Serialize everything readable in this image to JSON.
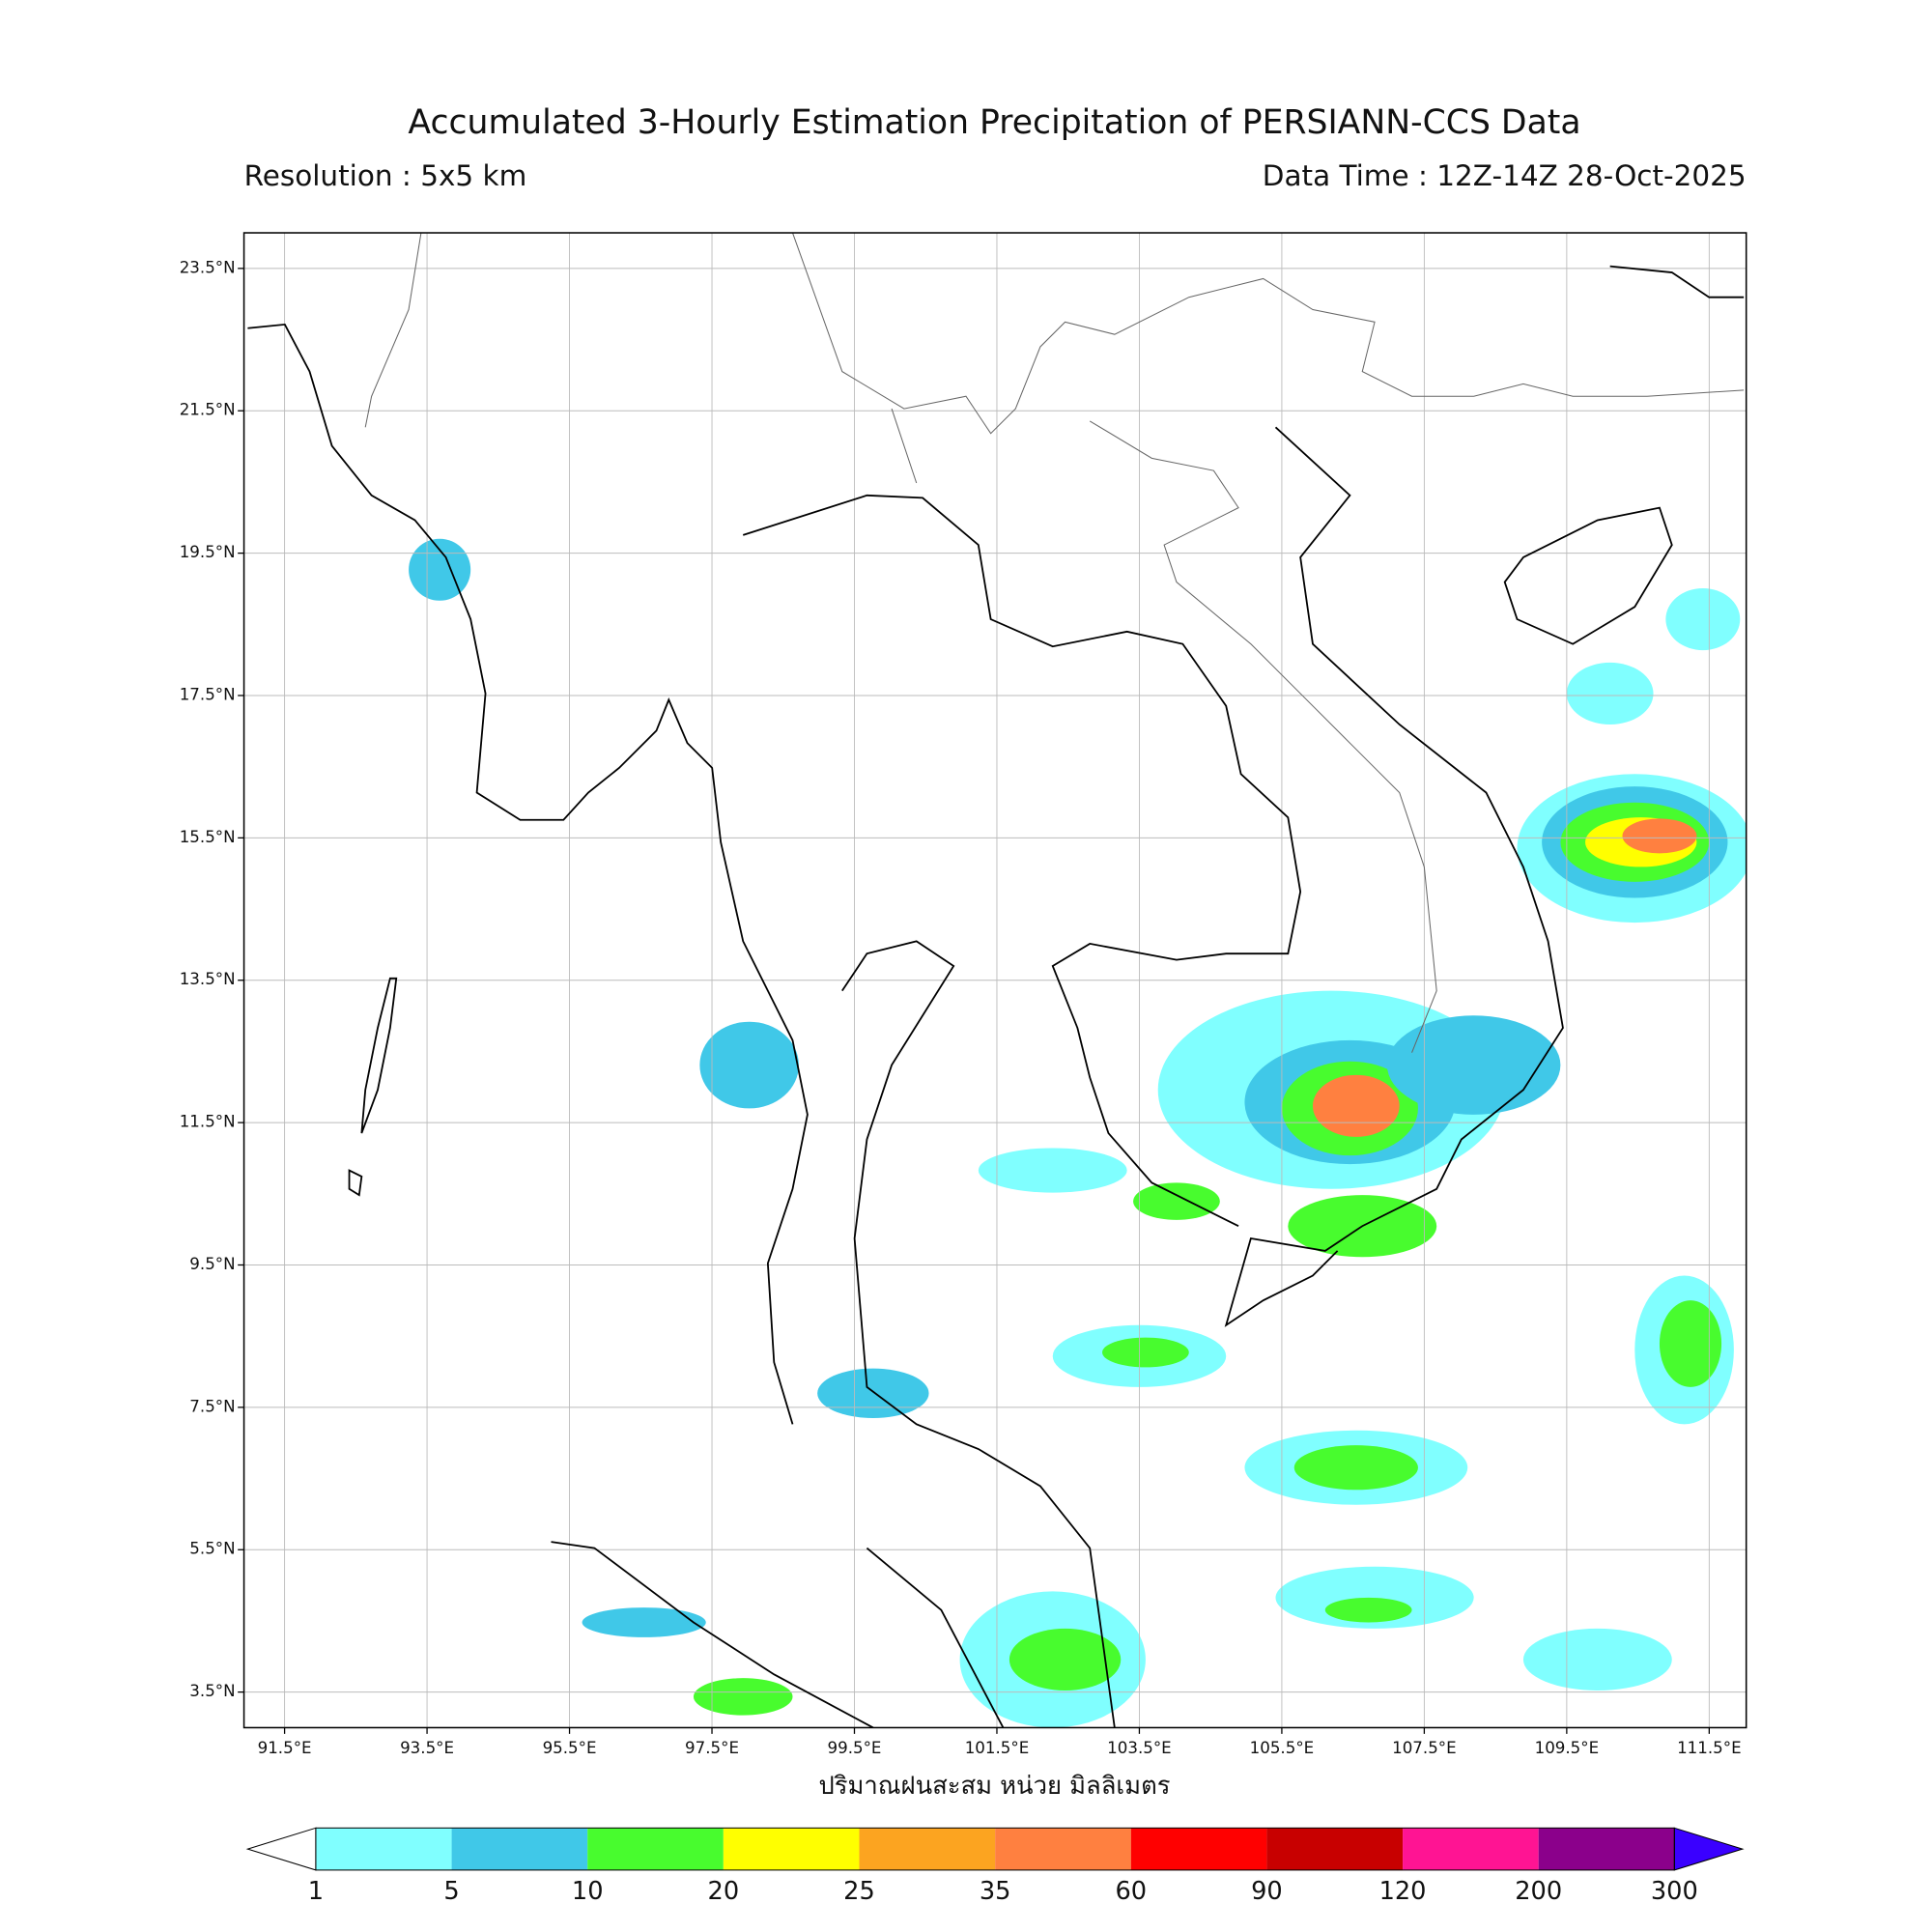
{
  "header": {
    "title": "Accumulated 3-Hourly Estimation Precipitation of PERSIANN-CCS Data",
    "resolution": "Resolution : 5x5 km",
    "data_time": "Data Time : 12Z-14Z 28-Oct-2025"
  },
  "map": {
    "xlim": [
      90.93,
      112.02
    ],
    "ylim": [
      3.0,
      24.0
    ],
    "xticks": [
      {
        "value": 91.5,
        "label": "91.5°E"
      },
      {
        "value": 93.5,
        "label": "93.5°E"
      },
      {
        "value": 95.5,
        "label": "95.5°E"
      },
      {
        "value": 97.5,
        "label": "97.5°E"
      },
      {
        "value": 99.5,
        "label": "99.5°E"
      },
      {
        "value": 101.5,
        "label": "101.5°E"
      },
      {
        "value": 103.5,
        "label": "103.5°E"
      },
      {
        "value": 105.5,
        "label": "105.5°E"
      },
      {
        "value": 107.5,
        "label": "107.5°E"
      },
      {
        "value": 109.5,
        "label": "109.5°E"
      },
      {
        "value": 111.5,
        "label": "111.5°E"
      }
    ],
    "yticks": [
      {
        "value": 3.5,
        "label": "3.5°N"
      },
      {
        "value": 5.5,
        "label": "5.5°N"
      },
      {
        "value": 7.5,
        "label": "7.5°N"
      },
      {
        "value": 9.5,
        "label": "9.5°N"
      },
      {
        "value": 11.5,
        "label": "11.5°N"
      },
      {
        "value": 13.5,
        "label": "13.5°N"
      },
      {
        "value": 15.5,
        "label": "15.5°N"
      },
      {
        "value": 17.5,
        "label": "17.5°N"
      },
      {
        "value": 19.5,
        "label": "19.5°N"
      },
      {
        "value": 21.5,
        "label": "21.5°N"
      },
      {
        "value": 23.5,
        "label": "23.5°N"
      }
    ],
    "xlabel": "ปริมาณฝนสะสม หน่วย มิลลิเมตร",
    "grid": true
  },
  "colorbar": {
    "levels": [
      1,
      5,
      10,
      20,
      25,
      35,
      60,
      90,
      120,
      200,
      300
    ],
    "colors": [
      "#80ffff",
      "#40c8e8",
      "#48fc2e",
      "#ffff00",
      "#fca420",
      "#ff8040",
      "#ff0000",
      "#c80000",
      "#ff1493",
      "#8b008b"
    ],
    "under_color": "#ffffff",
    "over_color": "#3a00ff"
  }
}
